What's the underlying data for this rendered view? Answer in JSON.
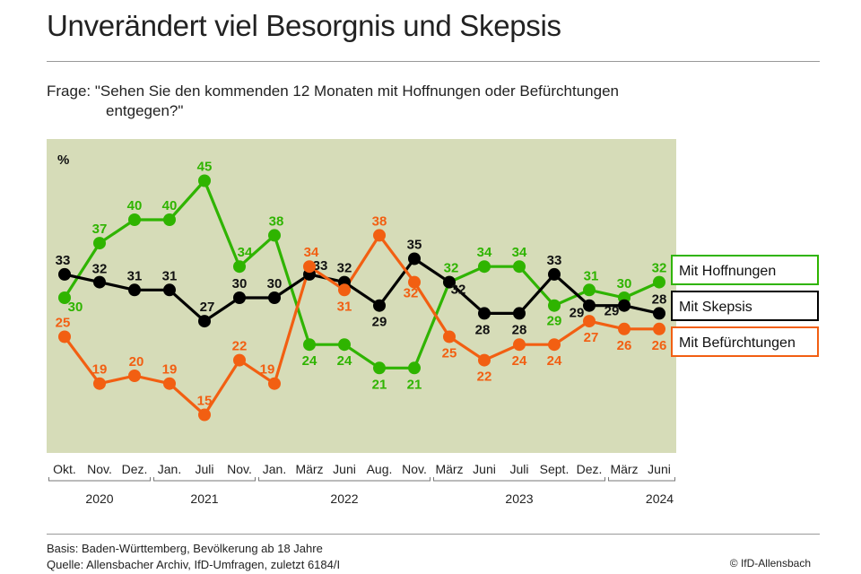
{
  "title": "Unverändert viel Besorgnis und Skepsis",
  "question": {
    "line1": "Frage: \"Sehen Sie den kommenden 12 Monaten mit Hoffnungen oder Befürchtungen",
    "line2": "entgegen?\""
  },
  "footer": {
    "basis": "Basis: Baden-Württemberg, Bevölkerung ab 18 Jahre",
    "quelle": "Quelle: Allensbacher Archiv, IfD-Umfragen, zuletzt 6184/I",
    "copyright": "© IfD-Allensbach"
  },
  "chart_data": {
    "type": "line",
    "ylabel": "%",
    "plot_background": "#d6dcb8",
    "categories": [
      "Okt.",
      "Nov.",
      "Dez.",
      "Jan.",
      "Juli",
      "Nov.",
      "Jan.",
      "März",
      "Juni",
      "Aug.",
      "Nov.",
      "März",
      "Juni",
      "Juli",
      "Sept.",
      "Dez.",
      "März",
      "Juni"
    ],
    "years": [
      {
        "label": "2020",
        "from": 0,
        "to": 2
      },
      {
        "label": "2021",
        "from": 3,
        "to": 5
      },
      {
        "label": "2022",
        "from": 6,
        "to": 10
      },
      {
        "label": "2023",
        "from": 11,
        "to": 15
      },
      {
        "label": "2024",
        "from": 16,
        "to": 17
      }
    ],
    "series": [
      {
        "name": "Mit Hoffnungen",
        "color": "#2fb400",
        "values": [
          30,
          37,
          40,
          40,
          45,
          34,
          38,
          24,
          24,
          21,
          21,
          32,
          34,
          34,
          29,
          31,
          30,
          32
        ]
      },
      {
        "name": "Mit Skepsis",
        "color": "#000000",
        "values": [
          33,
          32,
          31,
          31,
          27,
          30,
          30,
          33,
          32,
          29,
          35,
          32,
          28,
          28,
          33,
          29,
          29,
          28
        ]
      },
      {
        "name": "Mit Befürchtungen",
        "color": "#f25f12",
        "values": [
          25,
          19,
          20,
          19,
          15,
          22,
          19,
          34,
          31,
          38,
          32,
          25,
          22,
          24,
          24,
          27,
          26,
          26
        ]
      }
    ]
  }
}
